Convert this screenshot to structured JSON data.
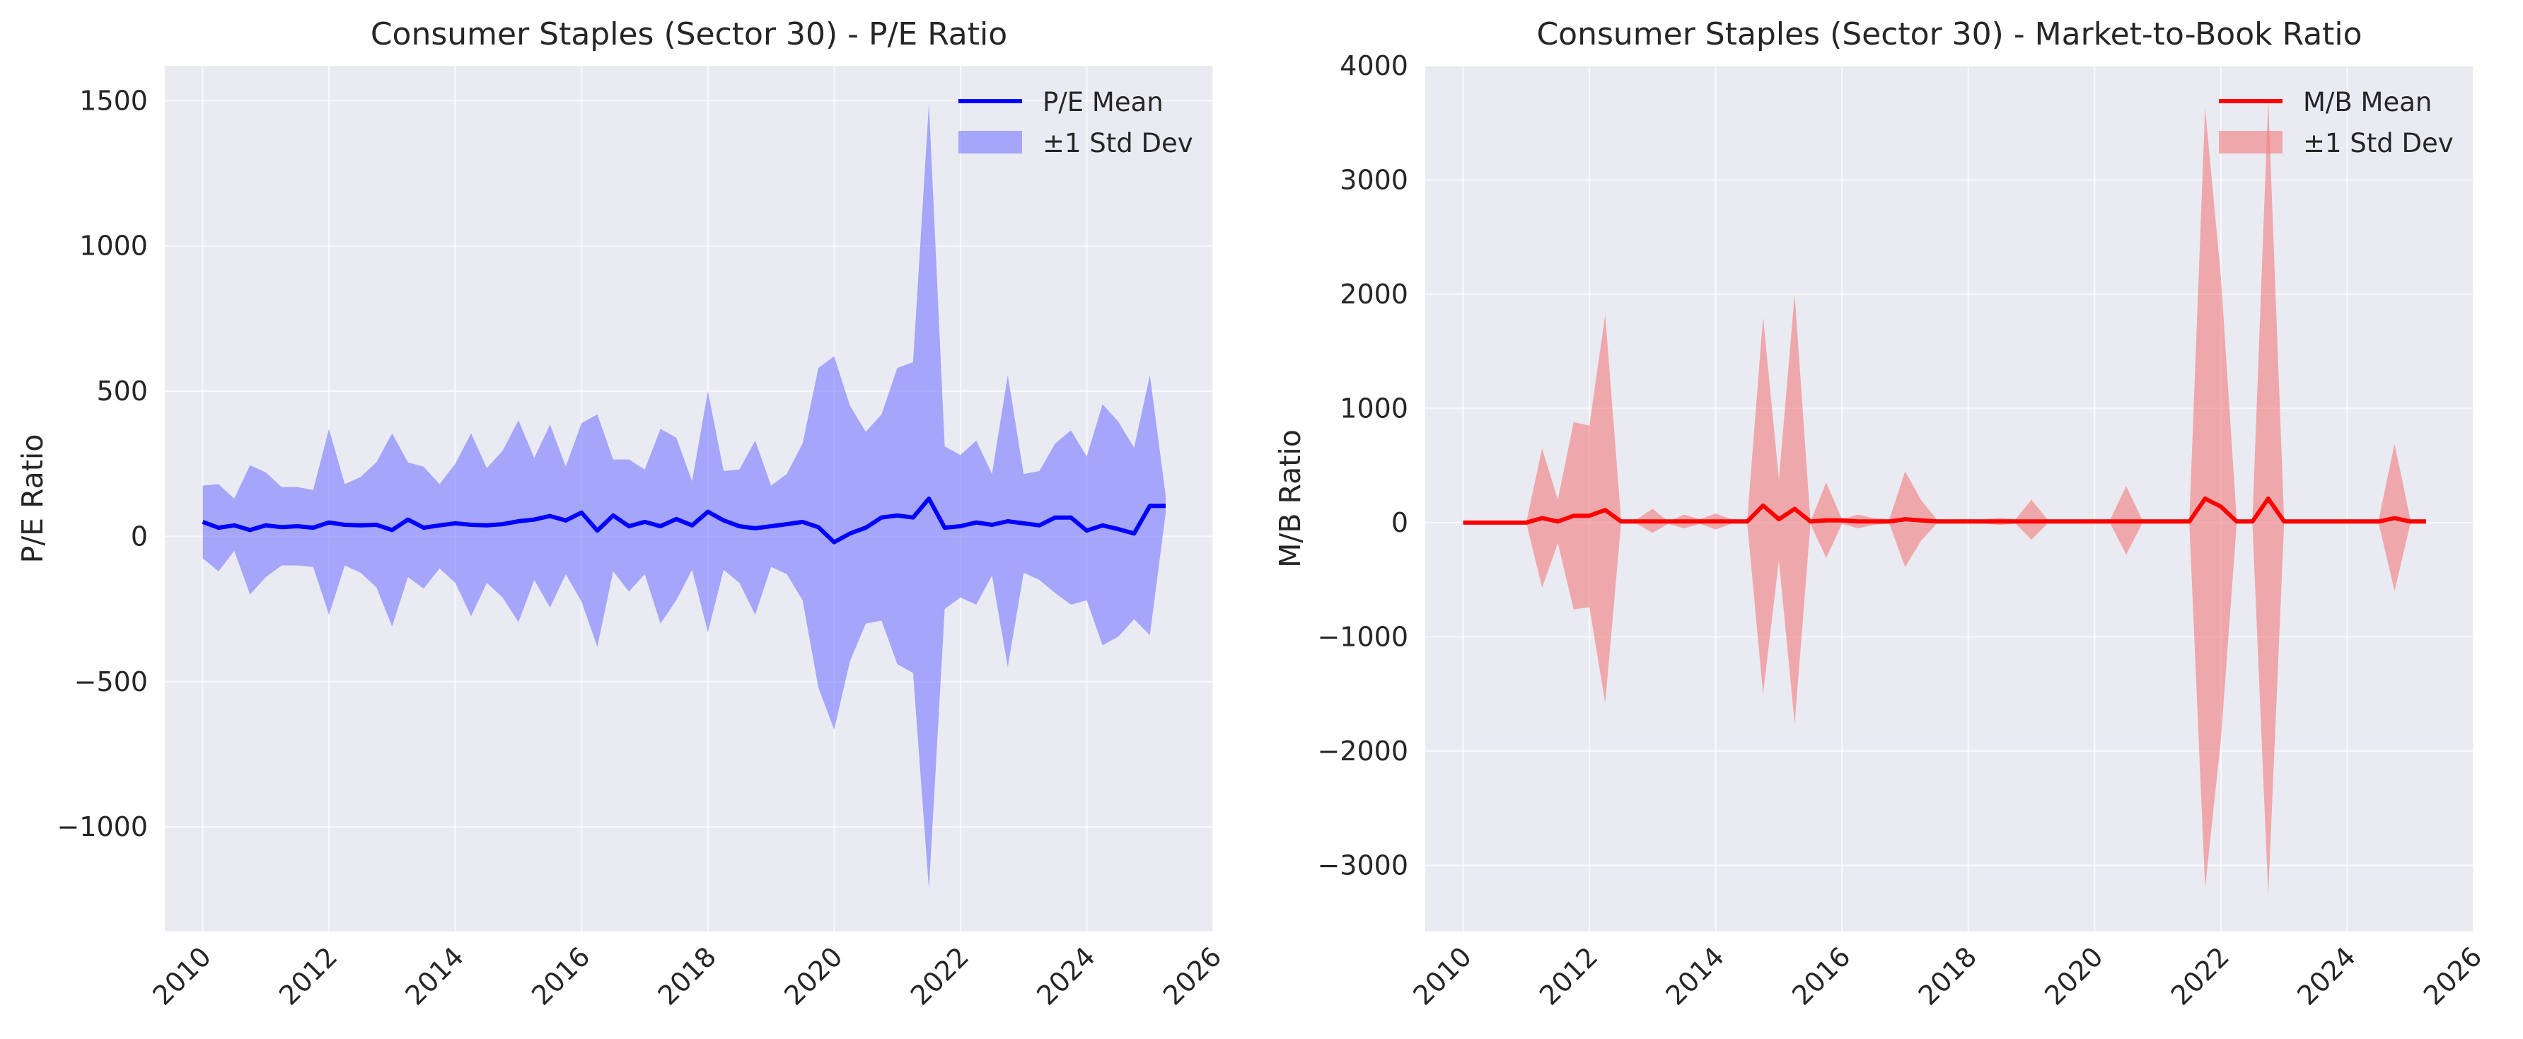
{
  "chart_data": [
    {
      "type": "line",
      "title": "Consumer Staples (Sector 30) - P/E Ratio",
      "xlabel": "",
      "ylabel": "P/E Ratio",
      "xlim": [
        2009.4,
        2026.0
      ],
      "ylim": [
        -1360,
        1620
      ],
      "xticks": [
        2010,
        2012,
        2014,
        2016,
        2018,
        2020,
        2022,
        2024,
        2026
      ],
      "yticks": [
        -1000,
        -500,
        0,
        500,
        1000,
        1500
      ],
      "grid": true,
      "legend_position": "top-right",
      "colors": {
        "line": "#0000ff",
        "band": "#7b7bff"
      },
      "x": [
        2010.0,
        2010.25,
        2010.5,
        2010.75,
        2011.0,
        2011.25,
        2011.5,
        2011.75,
        2012.0,
        2012.25,
        2012.5,
        2012.75,
        2013.0,
        2013.25,
        2013.5,
        2013.75,
        2014.0,
        2014.25,
        2014.5,
        2014.75,
        2015.0,
        2015.25,
        2015.5,
        2015.75,
        2016.0,
        2016.25,
        2016.5,
        2016.75,
        2017.0,
        2017.25,
        2017.5,
        2017.75,
        2018.0,
        2018.25,
        2018.5,
        2018.75,
        2019.0,
        2019.25,
        2019.5,
        2019.75,
        2020.0,
        2020.25,
        2020.5,
        2020.75,
        2021.0,
        2021.25,
        2021.5,
        2021.75,
        2022.0,
        2022.25,
        2022.5,
        2022.75,
        2023.0,
        2023.25,
        2023.5,
        2023.75,
        2024.0,
        2024.25,
        2024.5,
        2024.75,
        2025.0,
        2025.25
      ],
      "series": [
        {
          "name": "P/E Mean",
          "values": [
            50,
            30,
            38,
            22,
            38,
            32,
            35,
            30,
            48,
            40,
            38,
            40,
            22,
            58,
            30,
            38,
            45,
            40,
            38,
            42,
            52,
            58,
            70,
            55,
            82,
            20,
            72,
            35,
            50,
            35,
            60,
            38,
            85,
            55,
            35,
            28,
            35,
            42,
            50,
            32,
            -20,
            10,
            30,
            65,
            72,
            65,
            130,
            30,
            35,
            48,
            40,
            52,
            45,
            38,
            65,
            65,
            20,
            38,
            25,
            10,
            105,
            105
          ]
        },
        {
          "name": "±1 Std Dev",
          "upper": [
            175,
            180,
            130,
            245,
            220,
            170,
            170,
            160,
            370,
            180,
            205,
            255,
            355,
            255,
            240,
            180,
            250,
            355,
            235,
            295,
            400,
            270,
            385,
            240,
            390,
            420,
            265,
            265,
            230,
            370,
            340,
            190,
            500,
            225,
            230,
            330,
            175,
            215,
            320,
            580,
            620,
            450,
            360,
            420,
            580,
            600,
            1490,
            310,
            280,
            330,
            215,
            555,
            215,
            225,
            320,
            365,
            275,
            455,
            395,
            305,
            555,
            140
          ],
          "lower": [
            -75,
            -120,
            -50,
            -200,
            -140,
            -100,
            -100,
            -105,
            -270,
            -100,
            -125,
            -175,
            -310,
            -140,
            -180,
            -110,
            -160,
            -275,
            -160,
            -210,
            -295,
            -150,
            -245,
            -130,
            -225,
            -380,
            -120,
            -190,
            -130,
            -300,
            -220,
            -115,
            -330,
            -115,
            -160,
            -270,
            -105,
            -130,
            -220,
            -520,
            -665,
            -430,
            -300,
            -290,
            -440,
            -470,
            -1215,
            -250,
            -210,
            -235,
            -135,
            -450,
            -125,
            -150,
            -195,
            -235,
            -220,
            -375,
            -345,
            -285,
            -340,
            80
          ]
        }
      ]
    },
    {
      "type": "line",
      "title": "Consumer Staples (Sector 30) - Market-to-Book Ratio",
      "xlabel": "",
      "ylabel": "M/B Ratio",
      "xlim": [
        2009.4,
        2026.0
      ],
      "ylim": [
        -3580,
        4000
      ],
      "xticks": [
        2010,
        2012,
        2014,
        2016,
        2018,
        2020,
        2022,
        2024,
        2026
      ],
      "yticks": [
        -3000,
        -2000,
        -1000,
        0,
        1000,
        2000,
        3000,
        4000
      ],
      "grid": true,
      "legend_position": "top-right",
      "colors": {
        "line": "#ff0000",
        "band": "#f08080"
      },
      "x": [
        2010.0,
        2010.25,
        2010.5,
        2010.75,
        2011.0,
        2011.25,
        2011.5,
        2011.75,
        2012.0,
        2012.25,
        2012.5,
        2012.75,
        2013.0,
        2013.25,
        2013.5,
        2013.75,
        2014.0,
        2014.25,
        2014.5,
        2014.75,
        2015.0,
        2015.25,
        2015.5,
        2015.75,
        2016.0,
        2016.25,
        2016.5,
        2016.75,
        2017.0,
        2017.25,
        2017.5,
        2017.75,
        2018.0,
        2018.25,
        2018.5,
        2018.75,
        2019.0,
        2019.25,
        2019.5,
        2019.75,
        2020.0,
        2020.25,
        2020.5,
        2020.75,
        2021.0,
        2021.25,
        2021.5,
        2021.75,
        2022.0,
        2022.25,
        2022.5,
        2022.75,
        2023.0,
        2023.25,
        2023.5,
        2023.75,
        2024.0,
        2024.25,
        2024.5,
        2024.75,
        2025.0,
        2025.25
      ],
      "series": [
        {
          "name": "M/B Mean",
          "values": [
            0,
            0,
            0,
            0,
            0,
            40,
            10,
            60,
            60,
            110,
            10,
            10,
            10,
            10,
            10,
            10,
            10,
            10,
            10,
            150,
            30,
            120,
            10,
            20,
            20,
            10,
            10,
            10,
            30,
            20,
            10,
            10,
            10,
            10,
            10,
            10,
            10,
            10,
            10,
            10,
            10,
            10,
            10,
            10,
            10,
            10,
            10,
            210,
            140,
            10,
            10,
            210,
            10,
            10,
            10,
            10,
            10,
            10,
            10,
            40,
            10,
            10
          ],
          "color": "#ff0000"
        },
        {
          "name": "±1 Std Dev",
          "upper": [
            0,
            0,
            0,
            0,
            0,
            650,
            200,
            880,
            850,
            1820,
            30,
            30,
            120,
            10,
            70,
            30,
            80,
            30,
            30,
            1800,
            380,
            2000,
            10,
            350,
            30,
            70,
            40,
            30,
            450,
            200,
            30,
            30,
            30,
            30,
            40,
            30,
            200,
            30,
            30,
            30,
            30,
            30,
            320,
            30,
            30,
            30,
            30,
            3630,
            2150,
            30,
            30,
            3700,
            30,
            30,
            30,
            30,
            30,
            30,
            30,
            690,
            30,
            30
          ],
          "lower": [
            0,
            0,
            0,
            0,
            0,
            -570,
            -180,
            -760,
            -740,
            -1580,
            -10,
            -10,
            -90,
            -10,
            -50,
            -10,
            -60,
            -10,
            -10,
            -1500,
            -330,
            -1760,
            -10,
            -310,
            -10,
            -50,
            -20,
            -10,
            -390,
            -160,
            -10,
            -10,
            -10,
            -10,
            -20,
            -10,
            -150,
            -10,
            -10,
            -10,
            -10,
            -10,
            -280,
            -10,
            -10,
            -10,
            -10,
            -3200,
            -1900,
            -10,
            -10,
            -3260,
            -10,
            -10,
            -10,
            -10,
            -10,
            -10,
            -10,
            -600,
            -10,
            -10
          ]
        }
      ]
    }
  ]
}
